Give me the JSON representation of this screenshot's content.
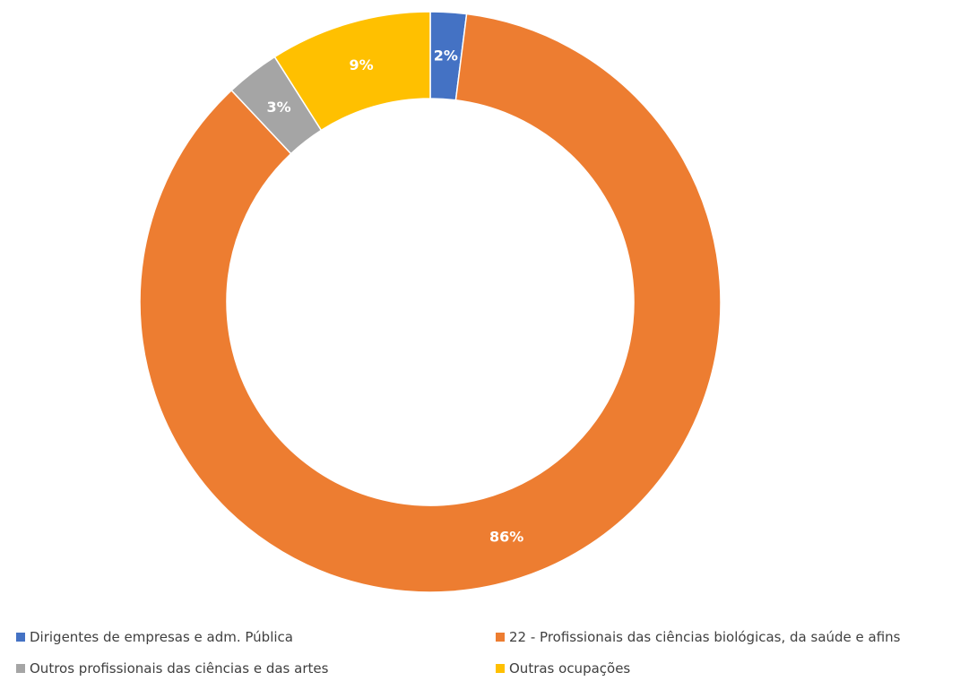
{
  "chart_data": {
    "type": "pie",
    "variant": "donut",
    "title": "",
    "categories": [
      "Dirigentes de empresas e adm. Pública",
      "22 - Profissionais das ciências biológicas, da saúde e afins",
      "Outros profissionais das ciências e das artes",
      "Outras ocupações"
    ],
    "values": [
      2,
      86,
      3,
      9
    ],
    "labels": [
      "2%",
      "86%",
      "3%",
      "9%"
    ],
    "colors": [
      "#4472C4",
      "#ED7D31",
      "#A5A5A5",
      "#FFC000"
    ],
    "legend_position": "bottom"
  }
}
